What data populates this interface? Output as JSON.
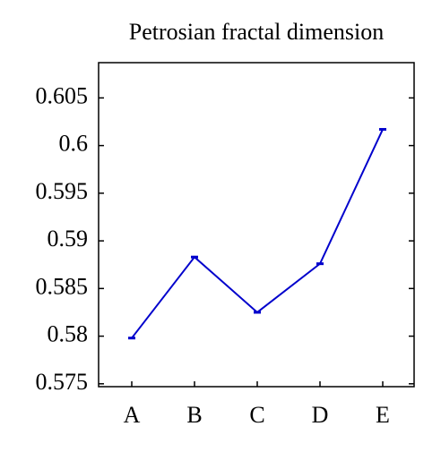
{
  "chart_data": {
    "type": "line",
    "title": "Petrosian fractal dimension",
    "categories": [
      "A",
      "B",
      "C",
      "D",
      "E"
    ],
    "values": [
      0.5798,
      0.5883,
      0.5825,
      0.5876,
      0.6017
    ],
    "color": "#0000cc",
    "ylim": [
      0.5747,
      0.6087
    ],
    "yticks": [
      0.575,
      0.58,
      0.585,
      0.59,
      0.595,
      0.6,
      0.605
    ]
  }
}
